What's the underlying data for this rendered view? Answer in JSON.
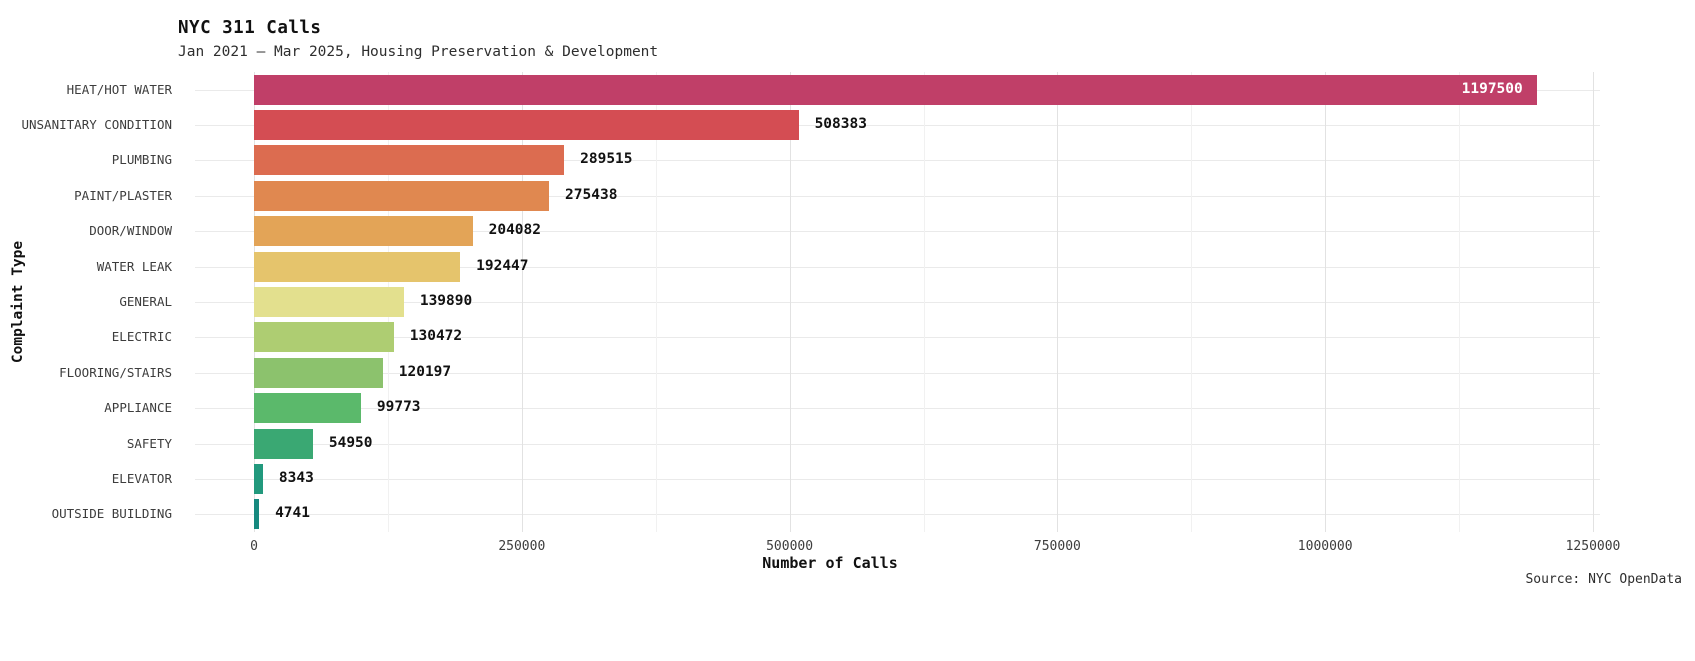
{
  "chart_data": {
    "type": "bar",
    "orientation": "horizontal",
    "title": "NYC 311 Calls",
    "subtitle": "Jan 2021 — Mar 2025, Housing Preservation & Development",
    "xlabel": "Number of Calls",
    "ylabel": "Complaint Type",
    "caption": "Source: NYC OpenData",
    "categories": [
      "HEAT/HOT WATER",
      "UNSANITARY CONDITION",
      "PLUMBING",
      "PAINT/PLASTER",
      "DOOR/WINDOW",
      "WATER LEAK",
      "GENERAL",
      "ELECTRIC",
      "FLOORING/STAIRS",
      "APPLIANCE",
      "SAFETY",
      "ELEVATOR",
      "OUTSIDE BUILDING"
    ],
    "values": [
      1197500,
      508383,
      289515,
      275438,
      204082,
      192447,
      139890,
      130472,
      120197,
      99773,
      54950,
      8343,
      4741
    ],
    "value_labels": [
      "1197500",
      "508383",
      "289515",
      "275438",
      "204082",
      "192447",
      "139890",
      "130472",
      "120197",
      "99773",
      "54950",
      "8343",
      "4741"
    ],
    "bar_colors": [
      "#c03f68",
      "#d44d53",
      "#dc6c50",
      "#e08850",
      "#e3a457",
      "#e5c46c",
      "#e3e08e",
      "#aecd72",
      "#8cc26d",
      "#5bb96b",
      "#3aa873",
      "#22997d",
      "#16897f"
    ],
    "xlim": [
      0,
      1250000
    ],
    "x_major_ticks": [
      0,
      250000,
      500000,
      750000,
      1000000,
      1250000
    ],
    "x_tick_labels": [
      "0",
      "250000",
      "500000",
      "750000",
      "1000000",
      "1250000"
    ],
    "x_minor_step": 125000,
    "grid": "on",
    "legend": "none"
  },
  "colors": {
    "background": "#ffffff",
    "grid_major": "#e2e2e2",
    "grid_minor": "#f1f1f1",
    "grid_horizontal": "#eaeaea",
    "text_dark": "#111111",
    "text_mid": "#3d3d3d",
    "inside_label": "#ffffff"
  }
}
